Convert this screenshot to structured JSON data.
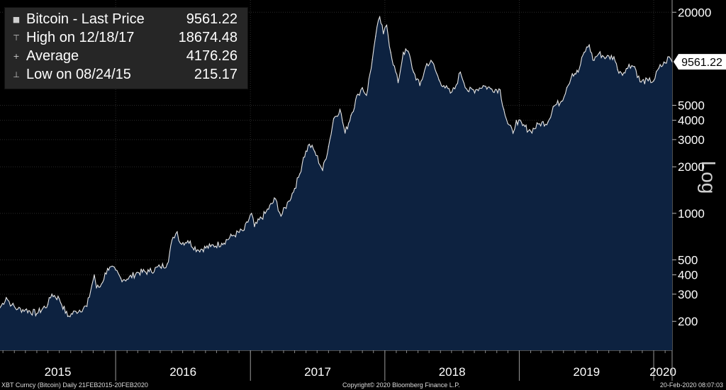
{
  "legend": {
    "rows": [
      {
        "marker": "■",
        "label": "Bitcoin - Last Price",
        "value": "9561.22"
      },
      {
        "marker": "⊤",
        "label": "High on 12/18/17",
        "value": "18674.48"
      },
      {
        "marker": "+",
        "label": "Average",
        "value": "4176.26"
      },
      {
        "marker": "⊥",
        "label": "Low on 08/24/15",
        "value": "215.17"
      }
    ]
  },
  "footer": {
    "left": "XBT Curncy (Bitcoin)  Daily 21FEB2015-20FEB2020",
    "center": "Copyright© 2020 Bloomberg Finance L.P.",
    "right": "20-Feb-2020 08:07:03"
  },
  "chart_data": {
    "type": "area",
    "title": "Bitcoin - Last Price",
    "yscale": "log",
    "ylabel": "Log",
    "ylim": [
      130,
      24000
    ],
    "xlim": [
      "2015-02-21",
      "2020-02-20"
    ],
    "y_ticks": [
      200,
      300,
      400,
      500,
      1000,
      2000,
      3000,
      4000,
      5000,
      20000
    ],
    "x_year_labels": [
      "2015",
      "2016",
      "2017",
      "2018",
      "2019",
      "2020"
    ],
    "last_price_label": "9561.22",
    "grid": true,
    "colors": {
      "fill": "#0d2240",
      "line": "#e6e6e6",
      "grid": "#2a2a2a",
      "price_box": "#ffffff"
    },
    "series": [
      {
        "name": "Bitcoin - Last Price",
        "x": [
          "2015-02-21",
          "2015-03-10",
          "2015-03-25",
          "2015-04-10",
          "2015-05-01",
          "2015-06-01",
          "2015-07-01",
          "2015-07-12",
          "2015-08-01",
          "2015-08-24",
          "2015-09-15",
          "2015-10-15",
          "2015-11-04",
          "2015-11-10",
          "2015-11-20",
          "2015-12-10",
          "2016-01-01",
          "2016-01-15",
          "2016-02-01",
          "2016-03-01",
          "2016-04-01",
          "2016-05-01",
          "2016-05-20",
          "2016-06-05",
          "2016-06-16",
          "2016-06-25",
          "2016-07-15",
          "2016-08-10",
          "2016-09-15",
          "2016-10-15",
          "2016-11-15",
          "2016-12-15",
          "2017-01-04",
          "2017-01-12",
          "2017-02-10",
          "2017-03-10",
          "2017-03-25",
          "2017-04-15",
          "2017-05-01",
          "2017-05-15",
          "2017-05-25",
          "2017-06-10",
          "2017-06-25",
          "2017-07-16",
          "2017-08-01",
          "2017-08-15",
          "2017-09-01",
          "2017-09-15",
          "2017-10-01",
          "2017-10-20",
          "2017-11-01",
          "2017-11-12",
          "2017-11-28",
          "2017-12-07",
          "2017-12-18",
          "2017-12-28",
          "2018-01-06",
          "2018-01-17",
          "2018-02-06",
          "2018-02-20",
          "2018-03-05",
          "2018-03-20",
          "2018-04-06",
          "2018-04-25",
          "2018-05-10",
          "2018-05-28",
          "2018-06-10",
          "2018-06-28",
          "2018-07-10",
          "2018-07-25",
          "2018-08-14",
          "2018-09-05",
          "2018-09-25",
          "2018-10-15",
          "2018-11-10",
          "2018-11-20",
          "2018-12-01",
          "2018-12-15",
          "2018-12-24",
          "2019-01-10",
          "2019-02-01",
          "2019-02-25",
          "2019-03-20",
          "2019-04-03",
          "2019-04-25",
          "2019-05-10",
          "2019-05-25",
          "2019-06-10",
          "2019-06-26",
          "2019-07-10",
          "2019-07-20",
          "2019-08-05",
          "2019-08-25",
          "2019-09-15",
          "2019-09-25",
          "2019-10-15",
          "2019-10-26",
          "2019-11-10",
          "2019-11-25",
          "2019-12-17",
          "2020-01-01",
          "2020-01-15",
          "2020-02-01",
          "2020-02-12",
          "2020-02-20"
        ],
        "y": [
          245,
          285,
          255,
          240,
          238,
          225,
          258,
          300,
          280,
          215.17,
          232,
          250,
          400,
          330,
          335,
          440,
          430,
          380,
          375,
          415,
          420,
          450,
          470,
          700,
          760,
          640,
          665,
          580,
          610,
          640,
          720,
          780,
          1000,
          820,
          1000,
          1240,
          960,
          1200,
          1450,
          1800,
          2300,
          2800,
          2500,
          1900,
          2700,
          4100,
          4700,
          3300,
          4300,
          5900,
          6500,
          5800,
          9900,
          14000,
          18674.48,
          14500,
          16500,
          11000,
          7000,
          11000,
          11200,
          8200,
          6700,
          9300,
          9500,
          7300,
          6700,
          6000,
          6400,
          8200,
          6200,
          6300,
          6700,
          6400,
          6300,
          4700,
          3800,
          3300,
          4000,
          3700,
          3400,
          3800,
          3900,
          4900,
          5300,
          6500,
          8000,
          8200,
          11000,
          12300,
          9800,
          10800,
          10200,
          10300,
          8500,
          8100,
          9200,
          8900,
          7100,
          7200,
          7200,
          8700,
          9400,
          10300,
          9561.22
        ]
      }
    ]
  }
}
